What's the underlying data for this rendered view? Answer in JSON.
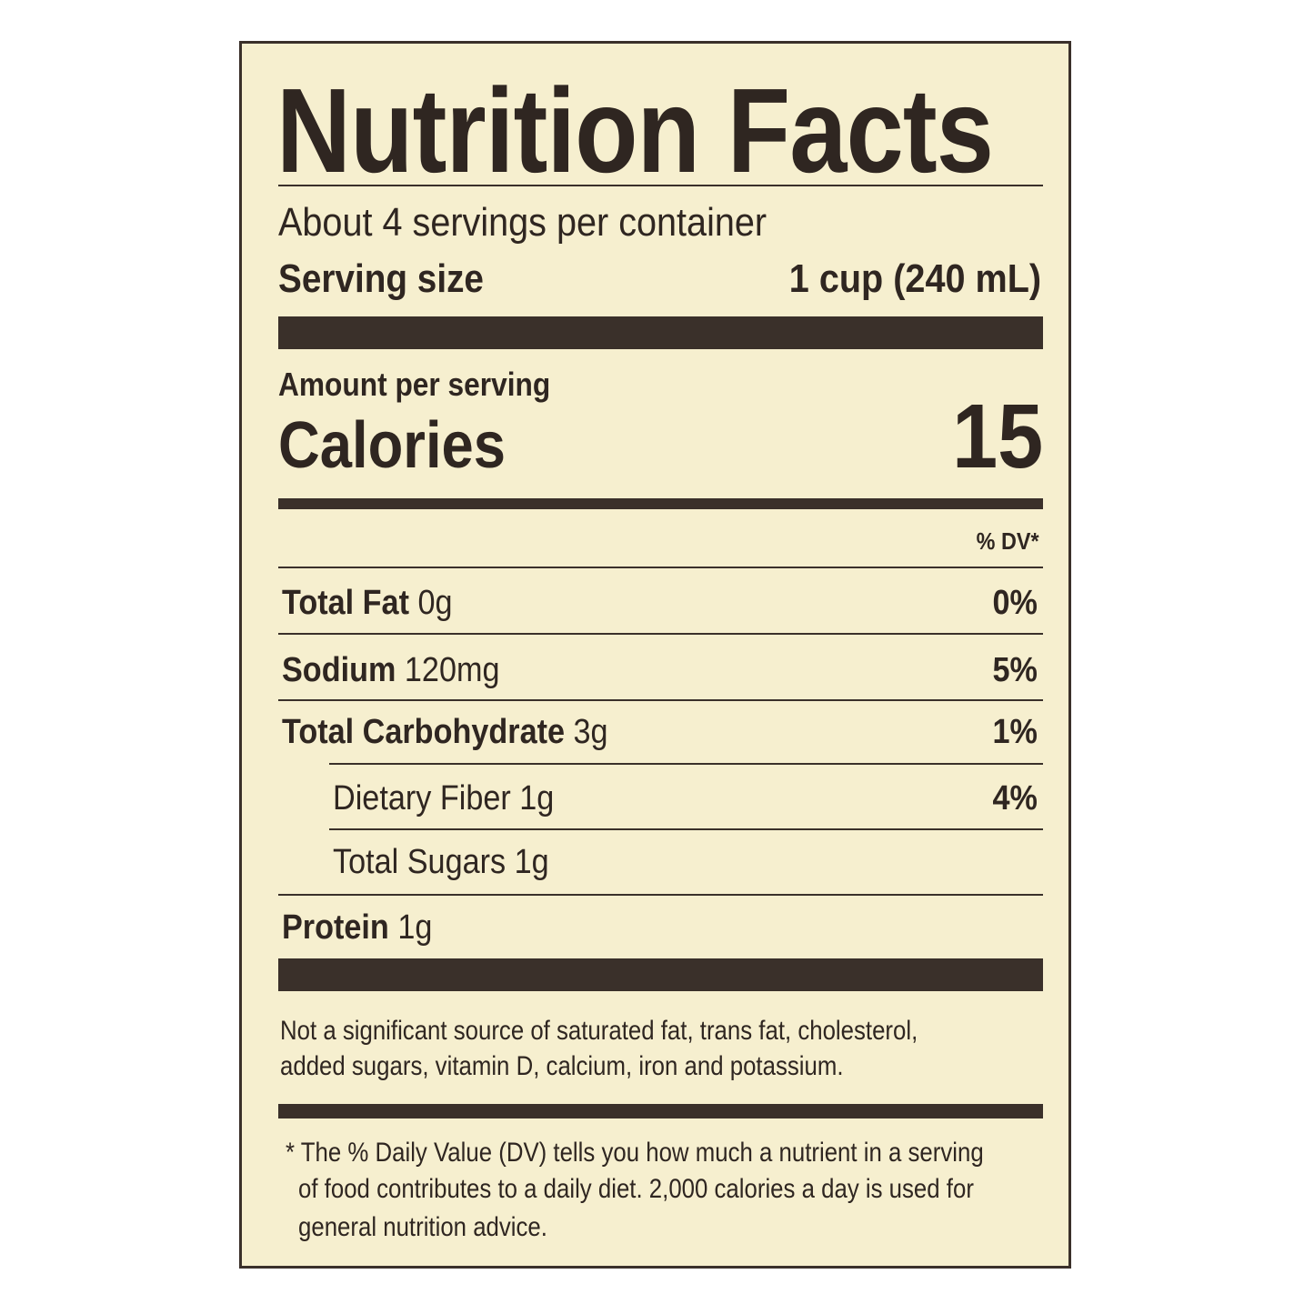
{
  "label": {
    "title": "Nutrition Facts",
    "servings_per_container": "About 4 servings per container",
    "serving_size_label": "Serving size",
    "serving_size_value": "1 cup (240 mL)",
    "amount_per_serving": "Amount per serving",
    "calories_label": "Calories",
    "calories_value": "15",
    "dv_header": "% DV*",
    "nutrients": [
      {
        "name": "Total Fat",
        "amount": "0g",
        "dv": "0%",
        "indent": false
      },
      {
        "name": "Sodium",
        "amount": "120mg",
        "dv": "5%",
        "indent": false
      },
      {
        "name": "Total Carbohydrate",
        "amount": "3g",
        "dv": "1%",
        "indent": false
      },
      {
        "name": "Dietary Fiber",
        "amount": "1g",
        "dv": "4%",
        "indent": true
      },
      {
        "name": "Total Sugars",
        "amount": "1g",
        "dv": "",
        "indent": true
      },
      {
        "name": "Protein",
        "amount": "1g",
        "dv": "",
        "indent": false
      }
    ],
    "not_significant_line1": "Not a significant source of saturated fat, trans fat, cholesterol,",
    "not_significant_line2": "added sugars, vitamin D, calcium, iron and potassium.",
    "footnote_line1": "* The % Daily Value (DV) tells you how much a nutrient in a serving",
    "footnote_line2": "of food contributes to a daily diet. 2,000 calories a day is used for",
    "footnote_line3": "general nutrition advice."
  },
  "colors": {
    "background": "#f6efcf",
    "ink": "#2f2621"
  }
}
